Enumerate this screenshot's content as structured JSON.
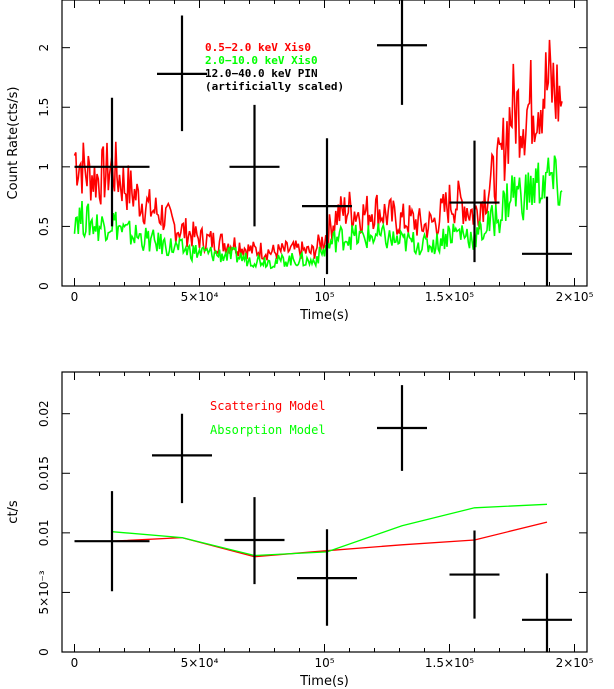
{
  "chart_data": [
    {
      "type": "line",
      "xlabel": "Time(s)",
      "ylabel": "Count Rate(cts/s)",
      "xlim": [
        -5000,
        205000
      ],
      "ylim": [
        0,
        2.4
      ],
      "x_ticks": [
        {
          "v": 0,
          "t": "0"
        },
        {
          "v": 50000,
          "t": "5×10⁴"
        },
        {
          "v": 100000,
          "t": "10⁵"
        },
        {
          "v": 150000,
          "t": "1.5×10⁵"
        },
        {
          "v": 200000,
          "t": "2×10⁵"
        }
      ],
      "y_ticks": [
        {
          "v": 0,
          "t": "0"
        },
        {
          "v": 0.5,
          "t": "0.5"
        },
        {
          "v": 1,
          "t": "1"
        },
        {
          "v": 1.5,
          "t": "1.5"
        },
        {
          "v": 2,
          "t": "2"
        }
      ],
      "legend": [
        {
          "label": "0.5−2.0 keV Xis0",
          "color": "#ff0000"
        },
        {
          "label": "2.0−10.0 keV Xis0",
          "color": "#00ff00"
        },
        {
          "label": "12.0−40.0 keV PIN",
          "color": "#000000"
        },
        {
          "label": "(artificially scaled)",
          "color": "#000000"
        }
      ],
      "series": [
        {
          "name": "0.5−2.0 keV Xis0",
          "color": "#ff0000",
          "x": [
            0,
            5000,
            10000,
            15000,
            20000,
            25000,
            30000,
            35000,
            40000,
            45000,
            50000,
            55000,
            60000,
            65000,
            70000,
            75000,
            80000,
            85000,
            90000,
            95000,
            100000,
            105000,
            110000,
            115000,
            120000,
            125000,
            130000,
            135000,
            140000,
            145000,
            150000,
            155000,
            160000,
            165000,
            170000,
            175000,
            180000,
            185000,
            190000,
            195000
          ],
          "y": [
            1.1,
            0.95,
            0.9,
            1.0,
            0.85,
            0.75,
            0.65,
            0.6,
            0.5,
            0.45,
            0.4,
            0.38,
            0.36,
            0.35,
            0.3,
            0.3,
            0.28,
            0.3,
            0.3,
            0.28,
            0.4,
            0.6,
            0.65,
            0.6,
            0.65,
            0.6,
            0.55,
            0.55,
            0.5,
            0.55,
            0.7,
            0.7,
            0.6,
            0.8,
            1.0,
            1.5,
            1.45,
            1.6,
            1.7,
            1.55
          ]
        },
        {
          "name": "2.0−10.0 keV Xis0",
          "color": "#00ff00",
          "x": [
            0,
            5000,
            10000,
            15000,
            20000,
            25000,
            30000,
            35000,
            40000,
            45000,
            50000,
            55000,
            60000,
            65000,
            70000,
            75000,
            80000,
            85000,
            90000,
            95000,
            100000,
            105000,
            110000,
            115000,
            120000,
            125000,
            130000,
            135000,
            140000,
            145000,
            150000,
            155000,
            160000,
            165000,
            170000,
            175000,
            180000,
            185000,
            190000,
            195000
          ],
          "y": [
            0.6,
            0.55,
            0.5,
            0.55,
            0.45,
            0.42,
            0.38,
            0.35,
            0.32,
            0.3,
            0.28,
            0.27,
            0.26,
            0.25,
            0.22,
            0.22,
            0.2,
            0.22,
            0.22,
            0.2,
            0.3,
            0.4,
            0.42,
            0.4,
            0.42,
            0.4,
            0.37,
            0.37,
            0.34,
            0.36,
            0.45,
            0.45,
            0.4,
            0.5,
            0.6,
            0.8,
            0.75,
            0.85,
            0.9,
            0.8
          ]
        }
      ],
      "points": [
        {
          "x": 15000,
          "y": 1.0,
          "xerr": 15000,
          "ylo": 0.5,
          "yhi": 1.58
        },
        {
          "x": 43000,
          "y": 1.78,
          "xerr": 10000,
          "ylo": 1.3,
          "yhi": 2.27
        },
        {
          "x": 72000,
          "y": 1.0,
          "xerr": 10000,
          "ylo": 0.5,
          "yhi": 1.52
        },
        {
          "x": 101000,
          "y": 0.67,
          "xerr": 10000,
          "ylo": 0.1,
          "yhi": 1.24
        },
        {
          "x": 131000,
          "y": 2.02,
          "xerr": 10000,
          "ylo": 1.52,
          "yhi": 2.4
        },
        {
          "x": 160000,
          "y": 0.7,
          "xerr": 10000,
          "ylo": 0.2,
          "yhi": 1.22
        },
        {
          "x": 189000,
          "y": 0.27,
          "xerr": 10000,
          "ylo": 0,
          "yhi": 0.75
        }
      ]
    },
    {
      "type": "line",
      "xlabel": "Time(s)",
      "ylabel": "ct/s",
      "xlim": [
        -5000,
        205000
      ],
      "ylim": [
        0,
        0.0235
      ],
      "x_ticks": [
        {
          "v": 0,
          "t": "0"
        },
        {
          "v": 50000,
          "t": "5×10⁴"
        },
        {
          "v": 100000,
          "t": "10⁵"
        },
        {
          "v": 150000,
          "t": "1.5×10⁵"
        },
        {
          "v": 200000,
          "t": "2×10⁵"
        }
      ],
      "y_ticks": [
        {
          "v": 0,
          "t": "0"
        },
        {
          "v": 0.005,
          "t": "5×10⁻³"
        },
        {
          "v": 0.01,
          "t": "0.01"
        },
        {
          "v": 0.015,
          "t": "0.015"
        },
        {
          "v": 0.02,
          "t": "0.02"
        }
      ],
      "legend": [
        {
          "label": "Scattering Model",
          "color": "#ff0000"
        },
        {
          "label": "Absorption Model",
          "color": "#00ff00"
        }
      ],
      "series": [
        {
          "name": "Scattering Model",
          "color": "#ff0000",
          "x": [
            15000,
            43000,
            72000,
            101000,
            131000,
            160000,
            189000
          ],
          "y": [
            0.0093,
            0.0096,
            0.008,
            0.0085,
            0.009,
            0.0094,
            0.0109
          ]
        },
        {
          "name": "Absorption Model",
          "color": "#00ff00",
          "x": [
            15000,
            43000,
            72000,
            101000,
            131000,
            160000,
            189000
          ],
          "y": [
            0.0101,
            0.0096,
            0.0081,
            0.0084,
            0.0106,
            0.0121,
            0.0124
          ]
        }
      ],
      "points": [
        {
          "x": 15000,
          "y": 0.0093,
          "xerr": 15000,
          "ylo": 0.0051,
          "yhi": 0.0135
        },
        {
          "x": 43000,
          "y": 0.0165,
          "xerr": 12000,
          "ylo": 0.0125,
          "yhi": 0.02
        },
        {
          "x": 72000,
          "y": 0.0094,
          "xerr": 12000,
          "ylo": 0.0057,
          "yhi": 0.013
        },
        {
          "x": 101000,
          "y": 0.0062,
          "xerr": 12000,
          "ylo": 0.0022,
          "yhi": 0.0103
        },
        {
          "x": 131000,
          "y": 0.0188,
          "xerr": 10000,
          "ylo": 0.0152,
          "yhi": 0.0224
        },
        {
          "x": 160000,
          "y": 0.0065,
          "xerr": 10000,
          "ylo": 0.0028,
          "yhi": 0.0102
        },
        {
          "x": 189000,
          "y": 0.0027,
          "xerr": 10000,
          "ylo": 0.0,
          "yhi": 0.0066
        }
      ]
    }
  ]
}
